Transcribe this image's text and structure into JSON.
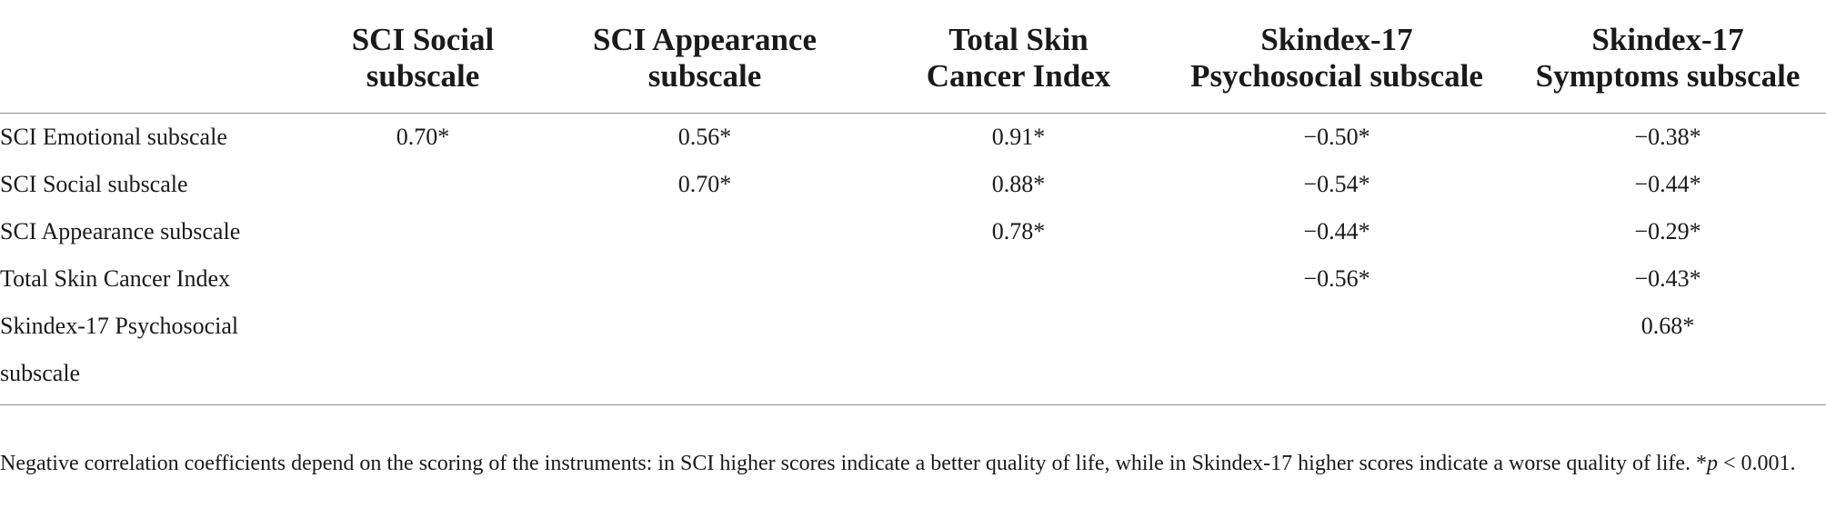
{
  "table": {
    "columns": [
      "",
      "SCI Social subscale",
      "SCI Appearance subscale",
      "Total Skin Cancer Index",
      "Skindex-17 Psychosocial subscale",
      "Skindex-17 Symptoms subscale"
    ],
    "header_lines": [
      [
        "",
        ""
      ],
      [
        "SCI Social",
        "subscale"
      ],
      [
        "SCI Appearance",
        "subscale"
      ],
      [
        "Total Skin",
        "Cancer Index"
      ],
      [
        "Skindex-17",
        "Psychosocial subscale"
      ],
      [
        "Skindex-17",
        "Symptoms subscale"
      ]
    ],
    "rows": [
      {
        "label": "SCI Emotional subscale",
        "cells": [
          "0.70*",
          "0.56*",
          "0.91*",
          "−0.50*",
          "−0.38*"
        ]
      },
      {
        "label": "SCI Social subscale",
        "cells": [
          "",
          "0.70*",
          "0.88*",
          "−0.54*",
          "−0.44*"
        ]
      },
      {
        "label": "SCI Appearance subscale",
        "cells": [
          "",
          "",
          "0.78*",
          "−0.44*",
          "−0.29*"
        ]
      },
      {
        "label": "Total Skin Cancer Index",
        "cells": [
          "",
          "",
          "",
          "−0.56*",
          "−0.43*"
        ]
      },
      {
        "label_lines": [
          "Skindex-17 Psychosocial",
          "subscale"
        ],
        "cells": [
          "",
          "",
          "",
          "",
          "0.68*"
        ]
      }
    ]
  },
  "footnote": {
    "text": "Negative correlation coefficients depend on the scoring of the instruments: in SCI higher scores indicate a better quality of life, while in Skindex-17 higher scores indicate a worse quality of life. ",
    "sig_prefix": "*",
    "sig_var": "p",
    "sig_rest": " < 0.001."
  }
}
